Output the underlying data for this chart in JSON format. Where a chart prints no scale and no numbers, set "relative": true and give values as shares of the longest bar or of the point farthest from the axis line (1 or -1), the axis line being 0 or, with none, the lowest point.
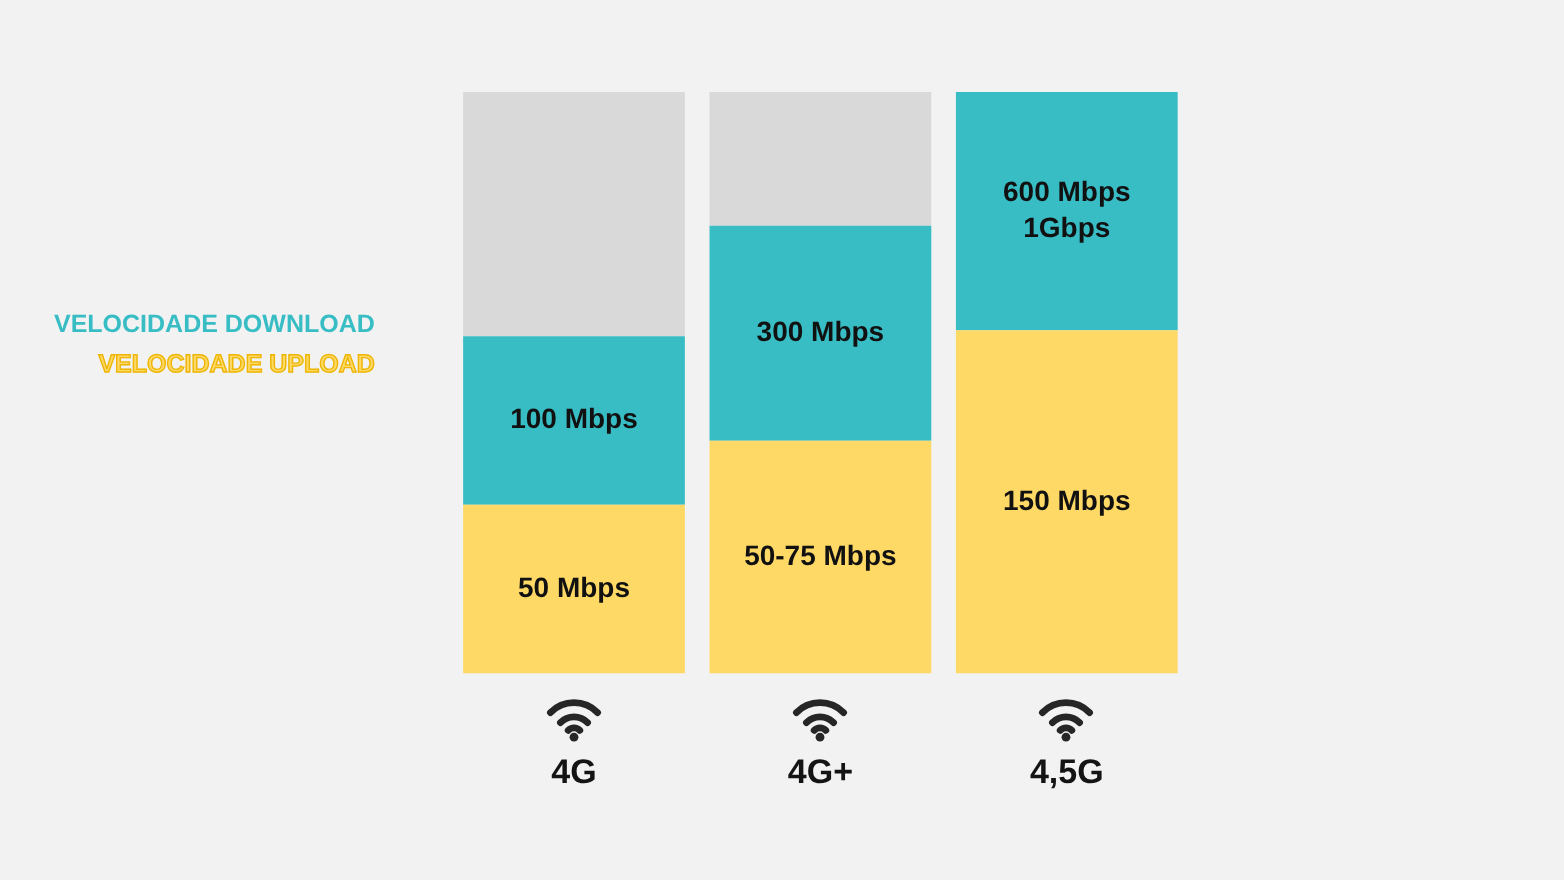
{
  "chart_data": {
    "type": "bar",
    "stacked": true,
    "relative": true,
    "legend": "left",
    "categories": [
      "4G",
      "4G+",
      "4,5G"
    ],
    "series": [
      {
        "name": "VELOCIDADE UPLOAD",
        "color": "#fed966",
        "values": [
          0.29,
          0.4,
          0.59
        ]
      },
      {
        "name": "VELOCIDADE DOWNLOAD",
        "color": "#38bdc5",
        "values": [
          0.29,
          0.37,
          0.41
        ]
      },
      {
        "color": "#d9d9d9",
        "values": [
          0.42,
          0.23,
          null
        ]
      }
    ],
    "annotations": [
      "50 Mbps",
      "50-75 Mbps",
      "150 Mbps",
      "100 Mbps",
      "300 Mbps",
      "600 Mbps\n1Gbps"
    ]
  }
}
